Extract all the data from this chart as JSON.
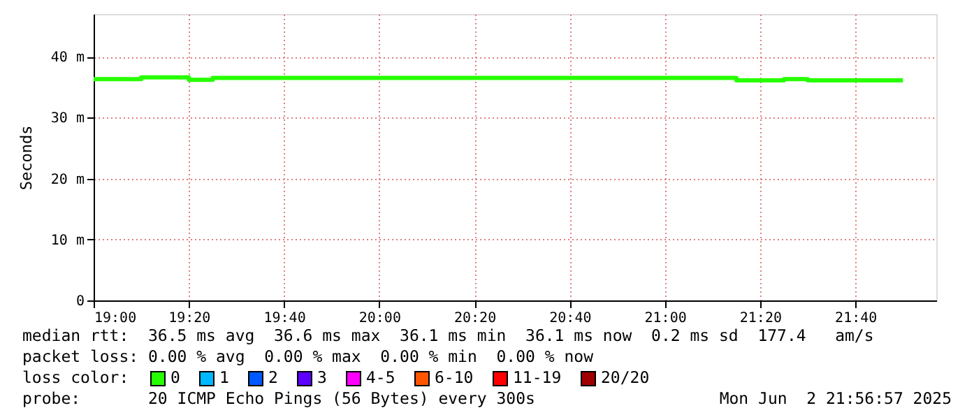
{
  "chart_data": {
    "type": "step",
    "ylabel": "Seconds",
    "x": [
      19.0,
      19.0833,
      19.1667,
      19.25,
      19.3333,
      19.4167,
      19.5,
      19.5833,
      19.6667,
      19.75,
      19.8333,
      19.9167,
      20.0,
      20.0833,
      20.1667,
      20.25,
      20.3333,
      20.4167,
      20.5,
      20.5833,
      20.6667,
      20.75,
      20.8333,
      20.9167,
      21.0,
      21.0833,
      21.1667,
      21.25,
      21.3333,
      21.4167,
      21.5,
      21.5833,
      21.6667,
      21.75,
      21.8333
    ],
    "series": [
      {
        "name": "0",
        "color": "#26ff00",
        "values": [
          36.3,
          36.3,
          36.6,
          36.6,
          36.2,
          36.5,
          36.5,
          36.5,
          36.5,
          36.5,
          36.5,
          36.5,
          36.5,
          36.5,
          36.5,
          36.5,
          36.5,
          36.5,
          36.5,
          36.5,
          36.5,
          36.5,
          36.5,
          36.5,
          36.5,
          36.5,
          36.5,
          36.1,
          36.1,
          36.3,
          36.1,
          36.1,
          36.1,
          36.1,
          36.1
        ]
      },
      {
        "name": "1",
        "color": "#00b8ff",
        "values": [
          null,
          null,
          null,
          null,
          null,
          null,
          null,
          null,
          null,
          null,
          null,
          null,
          null,
          null,
          null,
          null,
          null,
          null,
          null,
          null,
          null,
          null,
          null,
          null,
          null,
          null,
          null,
          null,
          null,
          null,
          null,
          null,
          null,
          null,
          null
        ]
      },
      {
        "name": "2",
        "color": "#0059ff",
        "values": [
          null,
          null,
          null,
          null,
          null,
          null,
          null,
          null,
          null,
          null,
          null,
          null,
          null,
          null,
          null,
          null,
          null,
          null,
          null,
          null,
          null,
          null,
          null,
          null,
          null,
          null,
          null,
          null,
          null,
          null,
          null,
          null,
          null,
          null,
          null
        ]
      },
      {
        "name": "3",
        "color": "#5e00ff",
        "values": [
          null,
          null,
          null,
          null,
          null,
          null,
          null,
          null,
          null,
          null,
          null,
          null,
          null,
          null,
          null,
          null,
          null,
          null,
          null,
          null,
          null,
          null,
          null,
          null,
          null,
          null,
          null,
          null,
          null,
          null,
          null,
          null,
          null,
          null,
          null
        ]
      },
      {
        "name": "4-5",
        "color": "#ff00ff",
        "values": [
          null,
          null,
          null,
          null,
          null,
          null,
          null,
          null,
          null,
          null,
          null,
          null,
          null,
          null,
          null,
          null,
          null,
          null,
          null,
          null,
          null,
          null,
          null,
          null,
          null,
          null,
          null,
          null,
          null,
          null,
          null,
          null,
          null,
          null,
          null
        ]
      },
      {
        "name": "6-10",
        "color": "#ff5500",
        "values": [
          null,
          null,
          null,
          null,
          null,
          null,
          null,
          null,
          null,
          null,
          null,
          null,
          null,
          null,
          null,
          null,
          null,
          null,
          null,
          null,
          null,
          null,
          null,
          null,
          null,
          null,
          null,
          null,
          null,
          null,
          null,
          null,
          null,
          null,
          null
        ]
      },
      {
        "name": "11-19",
        "color": "#ff0000",
        "values": [
          null,
          null,
          null,
          null,
          null,
          null,
          null,
          null,
          null,
          null,
          null,
          null,
          null,
          null,
          null,
          null,
          null,
          null,
          null,
          null,
          null,
          null,
          null,
          null,
          null,
          null,
          null,
          null,
          null,
          null,
          null,
          null,
          null,
          null,
          null
        ]
      },
      {
        "name": "20/20",
        "color": "#a10000",
        "values": [
          null,
          null,
          null,
          null,
          null,
          null,
          null,
          null,
          null,
          null,
          null,
          null,
          null,
          null,
          null,
          null,
          null,
          null,
          null,
          null,
          null,
          null,
          null,
          null,
          null,
          null,
          null,
          null,
          null,
          null,
          null,
          null,
          null,
          null,
          null
        ]
      }
    ],
    "xlim": [
      19.0,
      21.95
    ],
    "xticks": [
      {
        "value": 19.0,
        "label": "19:00"
      },
      {
        "value": 19.3333,
        "label": "19:20"
      },
      {
        "value": 19.6667,
        "label": "19:40"
      },
      {
        "value": 20.0,
        "label": "20:00"
      },
      {
        "value": 20.3333,
        "label": "20:20"
      },
      {
        "value": 20.6667,
        "label": "20:40"
      },
      {
        "value": 21.0,
        "label": "21:00"
      },
      {
        "value": 21.3333,
        "label": "21:20"
      },
      {
        "value": 21.6667,
        "label": "21:40"
      }
    ],
    "ylim": [
      0,
      47
    ],
    "yticks": [
      0,
      {
        "value": 10,
        "label": "10 m"
      },
      {
        "value": 20,
        "label": "20 m"
      },
      {
        "value": 30,
        "label": "30 m"
      },
      {
        "value": 40,
        "label": "40 m"
      }
    ],
    "grid": true,
    "legend": "bottom",
    "annotations": [
      "median rtt:  36.5 ms avg  36.6 ms max  36.1 ms min  36.1 ms now  0.2 ms sd  177.4   am/s",
      "packet loss: 0.00 % avg  0.00 % max  0.00 % min  0.00 % now",
      "loss color:",
      "probe:       20 ICMP Echo Pings (56 Bytes) every 300s",
      "Mon Jun  2 21:56:57 2025"
    ]
  }
}
